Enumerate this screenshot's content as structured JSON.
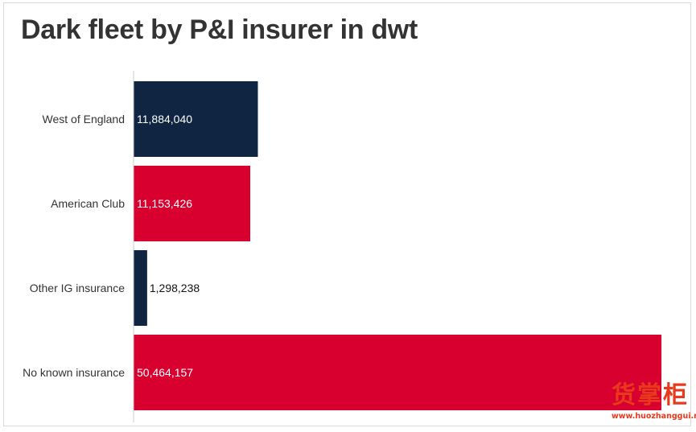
{
  "title": "Dark fleet by P&I insurer in dwt",
  "chart_data": {
    "type": "bar",
    "orientation": "horizontal",
    "categories": [
      "West of England",
      "American Club",
      "Other IG insurance",
      "No known insurance"
    ],
    "values": [
      11884040,
      11153426,
      1298238,
      50464157
    ],
    "value_labels": [
      "11,884,040",
      "11,153,426",
      "1,298,238",
      "50,464,157"
    ],
    "colors": [
      "#0f2541",
      "#d8002e",
      "#0f2541",
      "#d8002e"
    ],
    "title": "Dark fleet by P&I insurer in dwt",
    "xlabel": "",
    "ylabel": "",
    "xlim": [
      0,
      51000000
    ],
    "grid": false,
    "legend": "none"
  },
  "watermark": {
    "characters": "货掌柜",
    "url": "www.huozhanggui.net",
    "color": "#e8391d"
  }
}
